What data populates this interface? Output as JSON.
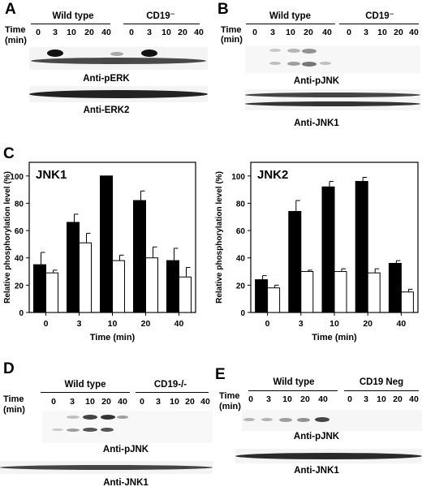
{
  "panels": {
    "A": {
      "letter": "A",
      "time_label_1": "Time",
      "time_label_2": "(min)",
      "groups": [
        "Wild type",
        "CD19⁻"
      ],
      "times": [
        "0",
        "3",
        "10",
        "20",
        "40",
        "0",
        "3",
        "10",
        "20",
        "40"
      ],
      "blots": [
        "Anti-pERK",
        "Anti-ERK2"
      ]
    },
    "B": {
      "letter": "B",
      "time_label_1": "Time",
      "time_label_2": "(min)",
      "groups": [
        "Wild type",
        "CD19⁻"
      ],
      "times": [
        "0",
        "3",
        "10",
        "20",
        "40",
        "0",
        "3",
        "10",
        "20",
        "40"
      ],
      "blots": [
        "Anti-pJNK",
        "Anti-JNK1"
      ]
    },
    "C": {
      "letter": "C"
    },
    "D": {
      "letter": "D",
      "time_label_1": "Time",
      "time_label_2": "(min)",
      "groups": [
        "Wild type",
        "CD19-/-"
      ],
      "times": [
        "0",
        "3",
        "10",
        "20",
        "40",
        "0",
        "3",
        "10",
        "20",
        "40"
      ],
      "blots": [
        "Anti-pJNK",
        "Anti-JNK1"
      ]
    },
    "E": {
      "letter": "E",
      "time_label_1": "Time",
      "time_label_2": "(min)",
      "groups": [
        "Wild type",
        "CD19 Neg"
      ],
      "times": [
        "0",
        "3",
        "10",
        "20",
        "40",
        "0",
        "3",
        "10",
        "20",
        "40"
      ],
      "blots": [
        "Anti-pJNK",
        "Anti-JNK1"
      ]
    }
  },
  "chart_data": [
    {
      "type": "bar",
      "title": "JNK1",
      "categories": [
        "0",
        "3",
        "10",
        "20",
        "40"
      ],
      "xlabel": "Time (min)",
      "ylabel": "Relative phosphorylation level (%)",
      "ylim": [
        0,
        110
      ],
      "yticks": [
        0,
        20,
        40,
        60,
        80,
        100
      ],
      "series": [
        {
          "values": [
            35,
            66,
            100,
            82,
            38
          ],
          "errors": [
            9,
            6,
            0,
            7,
            9
          ],
          "color": "#000000"
        },
        {
          "values": [
            29,
            51,
            38,
            40,
            26
          ],
          "errors": [
            2,
            7,
            4,
            8,
            7
          ],
          "color": "#ffffff"
        }
      ]
    },
    {
      "type": "bar",
      "title": "JNK2",
      "categories": [
        "0",
        "3",
        "10",
        "20",
        "40"
      ],
      "xlabel": "Time (min)",
      "ylabel": "Relative phosphorylation level (%)",
      "ylim": [
        0,
        110
      ],
      "yticks": [
        0,
        20,
        40,
        60,
        80,
        100
      ],
      "series": [
        {
          "values": [
            24,
            74,
            92,
            96,
            36
          ],
          "errors": [
            3,
            8,
            4,
            3,
            2
          ],
          "color": "#000000"
        },
        {
          "values": [
            18,
            30,
            30,
            29,
            15
          ],
          "errors": [
            2,
            1,
            2,
            3,
            2
          ],
          "color": "#ffffff"
        }
      ]
    }
  ]
}
